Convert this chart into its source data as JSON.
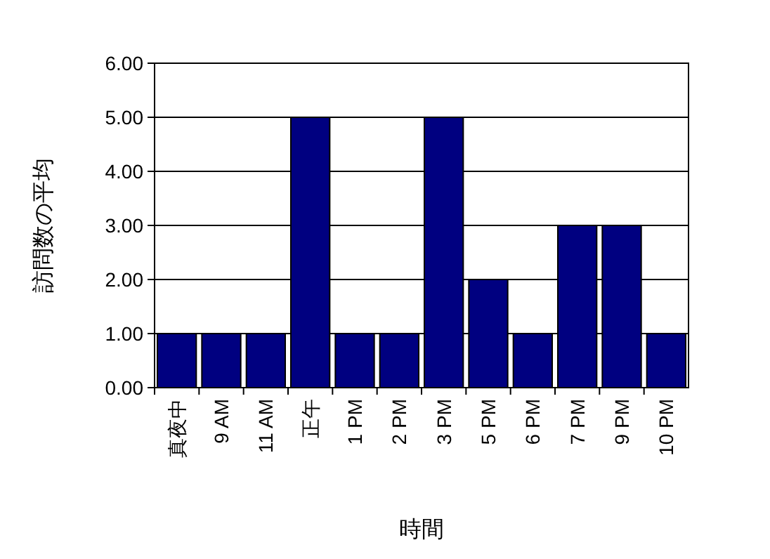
{
  "chart_data": {
    "type": "bar",
    "xlabel": "時間",
    "ylabel": "訪問数の平均",
    "categories": [
      "真夜中",
      "9 AM",
      "11 AM",
      "正午",
      "1 PM",
      "2 PM",
      "3 PM",
      "5 PM",
      "6 PM",
      "7 PM",
      "9 PM",
      "10 PM"
    ],
    "values": [
      1,
      1,
      1,
      5,
      1,
      1,
      5,
      2,
      1,
      3,
      3,
      1
    ],
    "color": "#000080",
    "ylim": [
      0,
      6
    ],
    "yticks": [
      {
        "value": 0,
        "label": "0.00"
      },
      {
        "value": 1,
        "label": "1.00"
      },
      {
        "value": 2,
        "label": "2.00"
      },
      {
        "value": 3,
        "label": "3.00"
      },
      {
        "value": 4,
        "label": "4.00"
      },
      {
        "value": 5,
        "label": "5.00"
      },
      {
        "value": 6,
        "label": "6.00"
      }
    ],
    "grid": "y"
  }
}
